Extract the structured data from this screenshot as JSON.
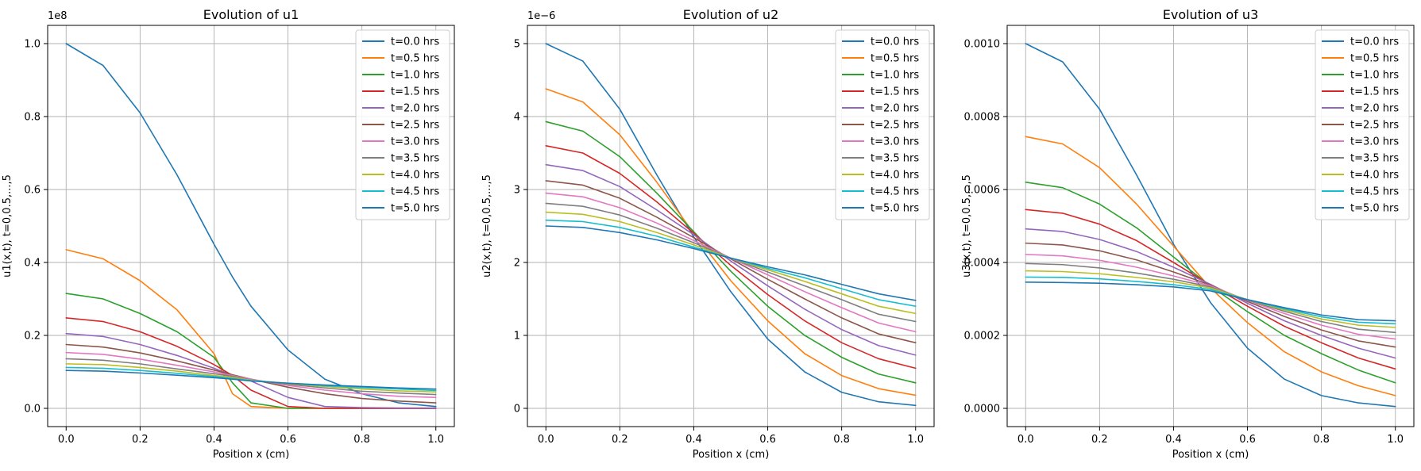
{
  "chart_data": [
    {
      "type": "line",
      "title": "Evolution of u1",
      "xlabel": "Position x (cm)",
      "ylabel": "u1(x,t), t=0,0.5,...,5",
      "offset_label": "1e8",
      "xlim": [
        -0.05,
        1.05
      ],
      "ylim": [
        -0.05,
        1.05
      ],
      "xticks": [
        "0.0",
        "0.2",
        "0.4",
        "0.6",
        "0.8",
        "1.0"
      ],
      "xtick_values": [
        0.0,
        0.2,
        0.4,
        0.6,
        0.8,
        1.0
      ],
      "yticks": [
        "0.0",
        "0.2",
        "0.4",
        "0.6",
        "0.8",
        "1.0"
      ],
      "ytick_values": [
        0.0,
        0.2,
        0.4,
        0.6,
        0.8,
        1.0
      ],
      "grid": true,
      "legend": "top-right",
      "x": [
        0.0,
        0.1,
        0.2,
        0.3,
        0.4,
        0.45,
        0.5,
        0.6,
        0.7,
        0.8,
        0.9,
        1.0
      ],
      "series": [
        {
          "name": "t=0.0 hrs",
          "color": "#1f77b4",
          "values": [
            1.0,
            0.94,
            0.81,
            0.64,
            0.45,
            0.36,
            0.28,
            0.16,
            0.08,
            0.04,
            0.015,
            0.005
          ]
        },
        {
          "name": "t=0.5 hrs",
          "color": "#ff7f0e",
          "values": [
            0.435,
            0.41,
            0.35,
            0.27,
            0.15,
            0.04,
            0.005,
            0.0,
            0.0,
            0.0,
            0.0,
            0.0
          ]
        },
        {
          "name": "t=1.0 hrs",
          "color": "#2ca02c",
          "values": [
            0.315,
            0.3,
            0.26,
            0.21,
            0.14,
            0.07,
            0.015,
            0.0,
            0.0,
            0.0,
            0.0,
            0.0
          ]
        },
        {
          "name": "t=1.5 hrs",
          "color": "#d62728",
          "values": [
            0.248,
            0.238,
            0.21,
            0.17,
            0.12,
            0.09,
            0.05,
            0.005,
            0.0,
            0.0,
            0.0,
            0.0
          ]
        },
        {
          "name": "t=2.0 hrs",
          "color": "#9467bd",
          "values": [
            0.205,
            0.197,
            0.175,
            0.145,
            0.11,
            0.09,
            0.075,
            0.03,
            0.005,
            0.002,
            0.001,
            0.001
          ]
        },
        {
          "name": "t=2.5 hrs",
          "color": "#8c564b",
          "values": [
            0.175,
            0.168,
            0.152,
            0.13,
            0.105,
            0.092,
            0.08,
            0.058,
            0.04,
            0.027,
            0.02,
            0.015
          ]
        },
        {
          "name": "t=3.0 hrs",
          "color": "#e377c2",
          "values": [
            0.153,
            0.148,
            0.135,
            0.118,
            0.1,
            0.09,
            0.08,
            0.063,
            0.05,
            0.04,
            0.033,
            0.03
          ]
        },
        {
          "name": "t=3.5 hrs",
          "color": "#7f7f7f",
          "values": [
            0.136,
            0.132,
            0.122,
            0.108,
            0.095,
            0.088,
            0.078,
            0.066,
            0.056,
            0.047,
            0.042,
            0.038
          ]
        },
        {
          "name": "t=4.0 hrs",
          "color": "#bcbd22",
          "values": [
            0.122,
            0.12,
            0.112,
            0.102,
            0.09,
            0.085,
            0.077,
            0.068,
            0.06,
            0.053,
            0.048,
            0.045
          ]
        },
        {
          "name": "t=4.5 hrs",
          "color": "#17becf",
          "values": [
            0.112,
            0.11,
            0.104,
            0.096,
            0.087,
            0.082,
            0.076,
            0.069,
            0.062,
            0.057,
            0.053,
            0.049
          ]
        },
        {
          "name": "t=5.0 hrs",
          "color": "#1f77b4",
          "values": [
            0.104,
            0.102,
            0.097,
            0.091,
            0.084,
            0.08,
            0.075,
            0.069,
            0.064,
            0.06,
            0.056,
            0.053
          ]
        }
      ]
    },
    {
      "type": "line",
      "title": "Evolution of u2",
      "xlabel": "Position x (cm)",
      "ylabel": "u2(x,t), t=0,0.5,...,5",
      "offset_label": "1e−6",
      "xlim": [
        -0.05,
        1.05
      ],
      "ylim": [
        -0.25,
        5.25
      ],
      "xticks": [
        "0.0",
        "0.2",
        "0.4",
        "0.6",
        "0.8",
        "1.0"
      ],
      "xtick_values": [
        0.0,
        0.2,
        0.4,
        0.6,
        0.8,
        1.0
      ],
      "yticks": [
        "0",
        "1",
        "2",
        "3",
        "4",
        "5"
      ],
      "ytick_values": [
        0,
        1,
        2,
        3,
        4,
        5
      ],
      "grid": true,
      "legend": "top-right",
      "x": [
        0.0,
        0.1,
        0.2,
        0.3,
        0.4,
        0.5,
        0.6,
        0.7,
        0.8,
        0.9,
        1.0
      ],
      "series": [
        {
          "name": "t=0.0 hrs",
          "color": "#1f77b4",
          "values": [
            5.0,
            4.76,
            4.1,
            3.2,
            2.35,
            1.6,
            0.95,
            0.5,
            0.22,
            0.09,
            0.04
          ]
        },
        {
          "name": "t=0.5 hrs",
          "color": "#ff7f0e",
          "values": [
            4.38,
            4.2,
            3.75,
            3.1,
            2.4,
            1.75,
            1.2,
            0.75,
            0.45,
            0.27,
            0.18
          ]
        },
        {
          "name": "t=1.0 hrs",
          "color": "#2ca02c",
          "values": [
            3.93,
            3.8,
            3.45,
            2.95,
            2.42,
            1.88,
            1.4,
            1.0,
            0.7,
            0.47,
            0.35
          ]
        },
        {
          "name": "t=1.5 hrs",
          "color": "#d62728",
          "values": [
            3.6,
            3.5,
            3.22,
            2.83,
            2.4,
            1.96,
            1.56,
            1.2,
            0.9,
            0.68,
            0.55
          ]
        },
        {
          "name": "t=2.0 hrs",
          "color": "#9467bd",
          "values": [
            3.34,
            3.26,
            3.04,
            2.72,
            2.38,
            2.02,
            1.68,
            1.36,
            1.08,
            0.86,
            0.73
          ]
        },
        {
          "name": "t=2.5 hrs",
          "color": "#8c564b",
          "values": [
            3.12,
            3.06,
            2.88,
            2.62,
            2.34,
            2.05,
            1.77,
            1.5,
            1.24,
            1.02,
            0.9
          ]
        },
        {
          "name": "t=3.0 hrs",
          "color": "#e377c2",
          "values": [
            2.95,
            2.9,
            2.75,
            2.54,
            2.3,
            2.06,
            1.83,
            1.6,
            1.38,
            1.17,
            1.05
          ]
        },
        {
          "name": "t=3.5 hrs",
          "color": "#7f7f7f",
          "values": [
            2.81,
            2.77,
            2.65,
            2.47,
            2.27,
            2.06,
            1.87,
            1.68,
            1.49,
            1.29,
            1.19
          ]
        },
        {
          "name": "t=4.0 hrs",
          "color": "#bcbd22",
          "values": [
            2.69,
            2.66,
            2.56,
            2.41,
            2.24,
            2.06,
            1.9,
            1.74,
            1.57,
            1.4,
            1.3
          ]
        },
        {
          "name": "t=4.5 hrs",
          "color": "#17becf",
          "values": [
            2.58,
            2.56,
            2.48,
            2.36,
            2.21,
            2.06,
            1.92,
            1.79,
            1.64,
            1.49,
            1.4
          ]
        },
        {
          "name": "t=5.0 hrs",
          "color": "#1f77b4",
          "values": [
            2.5,
            2.48,
            2.41,
            2.31,
            2.19,
            2.06,
            1.94,
            1.83,
            1.7,
            1.57,
            1.48
          ]
        }
      ]
    },
    {
      "type": "line",
      "title": "Evolution of u3",
      "xlabel": "Position x (cm)",
      "ylabel": "u3(x,t), t=0,0.5,...,5",
      "offset_label": "",
      "xlim": [
        -0.05,
        1.05
      ],
      "ylim": [
        -5e-05,
        0.00105
      ],
      "xticks": [
        "0.0",
        "0.2",
        "0.4",
        "0.6",
        "0.8",
        "1.0"
      ],
      "xtick_values": [
        0.0,
        0.2,
        0.4,
        0.6,
        0.8,
        1.0
      ],
      "yticks": [
        "0.0000",
        "0.0002",
        "0.0004",
        "0.0006",
        "0.0008",
        "0.0010"
      ],
      "ytick_values": [
        0.0,
        0.0002,
        0.0004,
        0.0006,
        0.0008,
        0.001
      ],
      "grid": true,
      "legend": "top-right",
      "x": [
        0.0,
        0.1,
        0.2,
        0.3,
        0.4,
        0.5,
        0.6,
        0.7,
        0.8,
        0.9,
        1.0
      ],
      "series": [
        {
          "name": "t=0.0 hrs",
          "color": "#1f77b4",
          "values": [
            0.001,
            0.00095,
            0.00082,
            0.00064,
            0.00045,
            0.00029,
            0.000165,
            8e-05,
            3.5e-05,
            1.5e-05,
            5e-06
          ]
        },
        {
          "name": "t=0.5 hrs",
          "color": "#ff7f0e",
          "values": [
            0.000745,
            0.000725,
            0.00066,
            0.00056,
            0.000445,
            0.00033,
            0.000235,
            0.000155,
            0.0001,
            6.2e-05,
            3.5e-05
          ]
        },
        {
          "name": "t=1.0 hrs",
          "color": "#2ca02c",
          "values": [
            0.00062,
            0.000605,
            0.00056,
            0.000495,
            0.000415,
            0.000335,
            0.000265,
            0.0002,
            0.00015,
            0.000105,
            7e-05
          ]
        },
        {
          "name": "t=1.5 hrs",
          "color": "#d62728",
          "values": [
            0.000545,
            0.000535,
            0.000505,
            0.00046,
            0.0004,
            0.000338,
            0.00028,
            0.000225,
            0.00018,
            0.000138,
            0.000108
          ]
        },
        {
          "name": "t=2.0 hrs",
          "color": "#9467bd",
          "values": [
            0.000492,
            0.000485,
            0.000463,
            0.00043,
            0.000387,
            0.00034,
            0.000288,
            0.00024,
            0.0002,
            0.000165,
            0.000138
          ]
        },
        {
          "name": "t=2.5 hrs",
          "color": "#8c564b",
          "values": [
            0.000453,
            0.000448,
            0.000432,
            0.000407,
            0.000374,
            0.000338,
            0.000293,
            0.000252,
            0.000215,
            0.000185,
            0.000168
          ]
        },
        {
          "name": "t=3.0 hrs",
          "color": "#e377c2",
          "values": [
            0.000422,
            0.000418,
            0.000406,
            0.000387,
            0.000363,
            0.000336,
            0.000296,
            0.00026,
            0.000228,
            0.000203,
            0.00019
          ]
        },
        {
          "name": "t=3.5 hrs",
          "color": "#7f7f7f",
          "values": [
            0.000397,
            0.000394,
            0.000385,
            0.000371,
            0.000354,
            0.000333,
            0.000297,
            0.000266,
            0.000238,
            0.000217,
            0.000208
          ]
        },
        {
          "name": "t=4.0 hrs",
          "color": "#bcbd22",
          "values": [
            0.000377,
            0.000375,
            0.000369,
            0.000359,
            0.000347,
            0.00033,
            0.000298,
            0.00027,
            0.000245,
            0.000228,
            0.000222
          ]
        },
        {
          "name": "t=4.5 hrs",
          "color": "#17becf",
          "values": [
            0.00036,
            0.000359,
            0.000355,
            0.000348,
            0.000339,
            0.000326,
            0.000298,
            0.000273,
            0.000251,
            0.000236,
            0.000232
          ]
        },
        {
          "name": "t=5.0 hrs",
          "color": "#1f77b4",
          "values": [
            0.000346,
            0.000345,
            0.000343,
            0.000339,
            0.000333,
            0.000322,
            0.000298,
            0.000276,
            0.000256,
            0.000243,
            0.00024
          ]
        }
      ]
    }
  ]
}
